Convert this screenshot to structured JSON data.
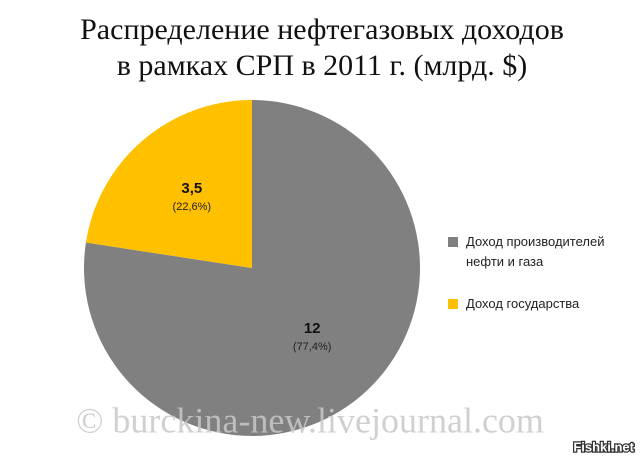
{
  "chart_data": {
    "type": "pie",
    "title": [
      "Распределение нефтегазовых доходов",
      "в рамках СРП в 2011 г. (млрд. $)"
    ],
    "categories": [
      "Доход производителей нефти и газа",
      "Доход государства"
    ],
    "values": [
      12,
      3.5
    ],
    "value_labels": [
      "12",
      "3,5"
    ],
    "percent_labels": [
      "(77,4%)",
      "(22,6%)"
    ],
    "colors": [
      "#808080",
      "#ffc000"
    ],
    "legend": "right"
  },
  "watermark": "© burckina-new.livejournal.com",
  "source": "Fishki.net"
}
